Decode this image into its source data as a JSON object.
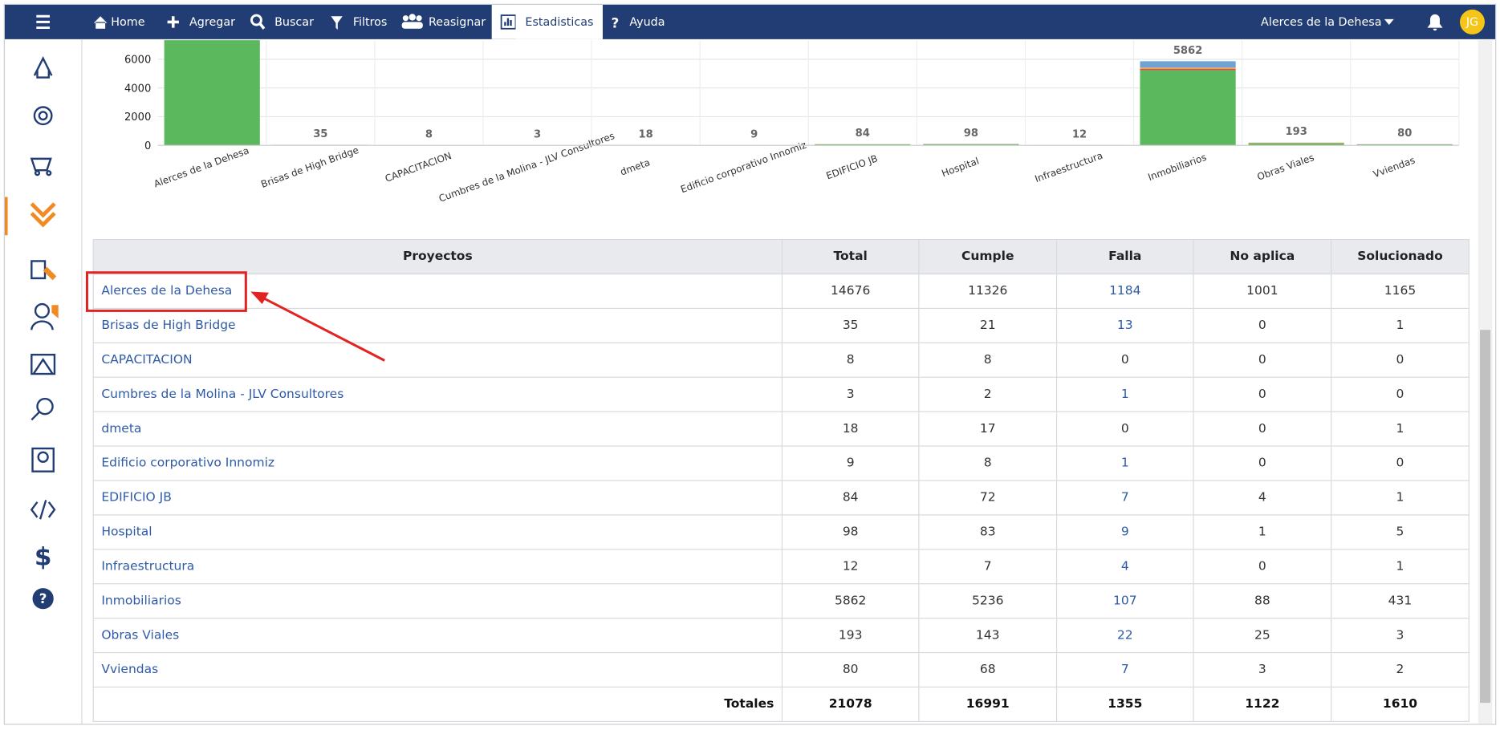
{
  "nav": {
    "items": [
      "Home",
      "Agregar",
      "Buscar",
      "Filtros",
      "Reasignar",
      "Estadisticas",
      "Ayuda"
    ],
    "project": "Alerces de la Dehesa",
    "initials": "JG"
  },
  "chart": {
    "type": "bar",
    "stacked": true,
    "ylim": [
      0,
      7333
    ],
    "yticks": [
      0,
      2000,
      4000,
      6000
    ],
    "grid": true,
    "colors": [
      "#5cb85c",
      "#d9534f",
      "#f0ad4e",
      "#6fa3d8"
    ]
  },
  "table": {
    "columns": [
      "Proyectos",
      "Total",
      "Cumple",
      "Falla",
      "No aplica",
      "Solucionado"
    ],
    "rows": [
      [
        "Alerces de la Dehesa",
        14676,
        11326,
        1184,
        1001,
        1165
      ],
      [
        "Brisas de High Bridge",
        35,
        21,
        13,
        0,
        1
      ],
      [
        "CAPACITACION",
        8,
        8,
        0,
        0,
        0
      ],
      [
        "Cumbres de la Molina - JLV Consultores",
        3,
        2,
        1,
        0,
        0
      ],
      [
        "dmeta",
        18,
        17,
        0,
        0,
        1
      ],
      [
        "Edificio corporativo Innomiz",
        9,
        8,
        1,
        0,
        0
      ],
      [
        "EDIFICIO JB",
        84,
        72,
        7,
        4,
        1
      ],
      [
        "Hospital",
        98,
        83,
        9,
        1,
        5
      ],
      [
        "Infraestructura",
        12,
        7,
        4,
        0,
        1
      ],
      [
        "Inmobiliarios",
        5862,
        5236,
        107,
        88,
        431
      ],
      [
        "Obras Viales",
        193,
        143,
        22,
        25,
        3
      ],
      [
        "Vviendas",
        80,
        68,
        7,
        3,
        2
      ]
    ],
    "totals": {
      "label": "Totales",
      "values": [
        21078,
        16991,
        1355,
        1122,
        1610
      ]
    }
  }
}
